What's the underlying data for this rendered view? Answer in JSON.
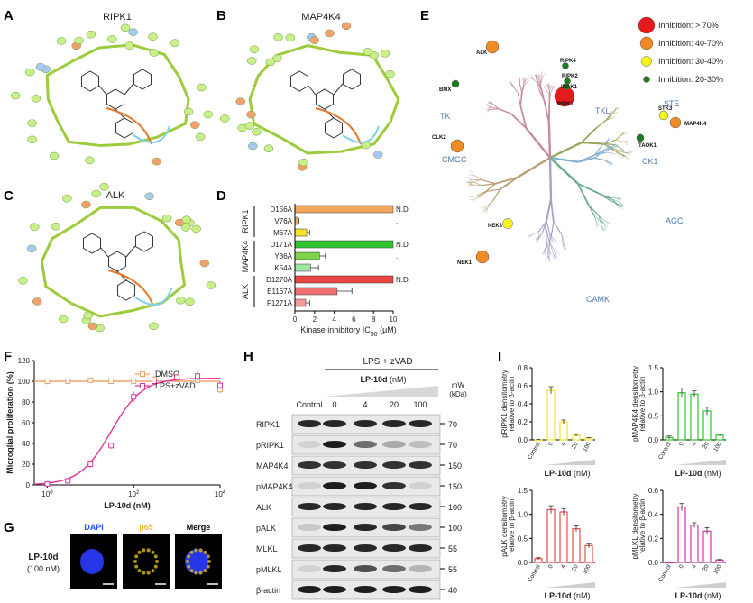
{
  "panels": {
    "A": {
      "letter": "A",
      "title": "RIPK1"
    },
    "B": {
      "letter": "B",
      "title": "MAP4K4"
    },
    "C": {
      "letter": "C",
      "title": "ALK"
    },
    "D": {
      "letter": "D"
    },
    "E": {
      "letter": "E"
    },
    "F": {
      "letter": "F"
    },
    "G": {
      "letter": "G"
    },
    "H": {
      "letter": "H"
    },
    "I": {
      "letter": "I"
    }
  },
  "kinome": {
    "groups": [
      "TK",
      "TKL",
      "STE",
      "CK1",
      "AGC",
      "CAMK",
      "CMGC"
    ],
    "legend": [
      {
        "label": "Inhibition: > 70%",
        "color": "#e41a1c"
      },
      {
        "label": "Inhibition: 40-70%",
        "color": "#f08a24"
      },
      {
        "label": "Inhibition: 30-40%",
        "color": "#f5f51a"
      },
      {
        "label": "Inhibition: 20-30%",
        "color": "#1f7a1f"
      }
    ],
    "hits": [
      {
        "name": "RIPK1",
        "color": "#e41a1c"
      },
      {
        "name": "ALK",
        "color": "#f08a24"
      },
      {
        "name": "CLK2",
        "color": "#f08a24"
      },
      {
        "name": "NEK1",
        "color": "#f08a24"
      },
      {
        "name": "MAP4K4",
        "color": "#f08a24"
      },
      {
        "name": "NEK3",
        "color": "#f5f51a"
      },
      {
        "name": "STK3",
        "color": "#f5f51a"
      },
      {
        "name": "BMX",
        "color": "#1f7a1f"
      },
      {
        "name": "RIPK4",
        "color": "#1f7a1f"
      },
      {
        "name": "RIPK2",
        "color": "#1f7a1f"
      },
      {
        "name": "IRAK1",
        "color": "#1f7a1f"
      },
      {
        "name": "TAOK1",
        "color": "#1f7a1f"
      }
    ]
  },
  "chart_data": [
    {
      "panel": "D",
      "type": "bar",
      "orientation": "horizontal",
      "xlabel_pre": "Kinase inhibitory IC",
      "xlabel_sub": "50",
      "xlabel_post": " (μM)",
      "xlim": [
        0,
        10
      ],
      "xticks": [
        "0",
        "2",
        "4",
        "6",
        "8",
        "10"
      ],
      "groups": [
        {
          "name": "RIPK1",
          "items": [
            {
              "label": "D156A",
              "value": 10,
              "err": 0,
              "color": "#f5a55a",
              "note": "N.D"
            },
            {
              "label": "V76A",
              "value": 0.3,
              "err": 0.1,
              "color": "#f5a55a",
              "note": "."
            },
            {
              "label": "M67A",
              "value": 1.2,
              "err": 0.3,
              "color": "#f5e233",
              "note": ""
            }
          ]
        },
        {
          "name": "MAP4K4",
          "items": [
            {
              "label": "D171A",
              "value": 10,
              "err": 0,
              "color": "#2fc42f",
              "note": "N.D"
            },
            {
              "label": "Y36A",
              "value": 2.5,
              "err": 0.6,
              "color": "#7dd34a",
              "note": "."
            },
            {
              "label": "K54A",
              "value": 1.6,
              "err": 0.8,
              "color": "#9fe59f",
              "note": ""
            }
          ]
        },
        {
          "name": "ALK",
          "items": [
            {
              "label": "D1270A",
              "value": 10,
              "err": 0,
              "color": "#e84545",
              "note": "N.D."
            },
            {
              "label": "E1167A",
              "value": 4.3,
              "err": 1.5,
              "color": "#ee7070",
              "note": ""
            },
            {
              "label": "F1271A",
              "value": 1.1,
              "err": 0.4,
              "color": "#f29a9a",
              "note": ""
            }
          ]
        }
      ]
    },
    {
      "panel": "F",
      "type": "scatter",
      "xlabel": "LP-10d (nM)",
      "ylabel": "Microglial proliferation (%)",
      "xscale": "log",
      "xlim": [
        0.5,
        10000
      ],
      "ylim": [
        0,
        120
      ],
      "yticks": [
        "0",
        "20",
        "40",
        "60",
        "80",
        "100",
        "120"
      ],
      "xticks": [
        {
          "base": "10",
          "exp": "0",
          "v": 1
        },
        {
          "base": "10",
          "exp": "2",
          "v": 100
        },
        {
          "base": "10",
          "exp": "4",
          "v": 10000
        }
      ],
      "series": [
        {
          "name": "DMSO",
          "color": "#f2a36b",
          "x": [
            1,
            3,
            10,
            30,
            100,
            300,
            1000,
            3000,
            10000
          ],
          "y": [
            100,
            100,
            101,
            100,
            100,
            102,
            103,
            101,
            92
          ],
          "err": [
            3,
            2,
            3,
            2,
            2,
            3,
            3,
            4,
            4
          ]
        },
        {
          "name": "LPS+zVAD",
          "color": "#e0339b",
          "x": [
            1,
            3,
            10,
            30,
            100,
            300,
            1000,
            3000,
            10000
          ],
          "y": [
            1,
            4,
            20,
            38,
            85,
            100,
            104,
            105,
            96
          ],
          "err": [
            0,
            1,
            3,
            3,
            5,
            3,
            3,
            5,
            4
          ]
        }
      ]
    },
    {
      "panel": "I",
      "type": "bar",
      "ylabel": "pRIPK1 densitometry relative to β-actin",
      "xlabel": "LP-10d (nM)",
      "color": "#f5e233",
      "ylim": [
        0,
        0.8
      ],
      "yticks": [
        "0.0",
        "0.2",
        "0.4",
        "0.6",
        "0.8"
      ],
      "categories": [
        "Control",
        "0",
        "4",
        "20",
        "100"
      ],
      "values": [
        0.0,
        0.55,
        0.2,
        0.05,
        0.02
      ],
      "err": [
        0.005,
        0.04,
        0.02,
        0.01,
        0.005
      ]
    },
    {
      "panel": "I",
      "type": "bar",
      "ylabel": "pMAP4K4 densitometry relative to β-actin",
      "xlabel": "LP-10d (nM)",
      "color": "#2fc42f",
      "ylim": [
        0,
        1.5
      ],
      "yticks": [
        "0.0",
        "0.5",
        "1.0",
        "1.5"
      ],
      "categories": [
        "Control",
        "0",
        "4",
        "20",
        "100"
      ],
      "values": [
        0.05,
        0.98,
        0.95,
        0.6,
        0.1
      ],
      "err": [
        0.03,
        0.1,
        0.07,
        0.08,
        0.02
      ]
    },
    {
      "panel": "I",
      "type": "bar",
      "ylabel": "pALK densitometry relative to β-actin",
      "xlabel": "LP-10d (nM)",
      "color": "#ee4a4a",
      "ylim": [
        0,
        1.5
      ],
      "yticks": [
        "0.0",
        "0.5",
        "1.0",
        "1.5"
      ],
      "categories": [
        "Control",
        "0",
        "4",
        "20",
        "100"
      ],
      "values": [
        0.08,
        1.1,
        1.05,
        0.7,
        0.35
      ],
      "err": [
        0.02,
        0.08,
        0.07,
        0.06,
        0.05
      ]
    },
    {
      "panel": "I",
      "type": "bar",
      "ylabel": "pMLKL densitometry relative to β-actin",
      "xlabel": "LP-10d (nM)",
      "color": "#dd33aa",
      "ylim": [
        0,
        0.6
      ],
      "yticks": [
        "0.0",
        "0.2",
        "0.4",
        "0.6"
      ],
      "categories": [
        "Control",
        "0",
        "4",
        "20",
        "100"
      ],
      "values": [
        0.0,
        0.46,
        0.31,
        0.26,
        0.02
      ],
      "err": [
        0.002,
        0.03,
        0.02,
        0.03,
        0.005
      ]
    }
  ],
  "western": {
    "treatment": "LPS + zVAD",
    "dose_label": "LP-10d",
    "dose_unit": "(nM)",
    "lanes": [
      "Control",
      "0",
      "4",
      "20",
      "100"
    ],
    "mw_title": "mW",
    "mw_unit": "(kDa)",
    "rows": [
      {
        "label": "RIPK1",
        "mw": "70",
        "bands": [
          0.9,
          0.9,
          0.9,
          0.9,
          0.9
        ]
      },
      {
        "label": "pRIPK1",
        "mw": "70",
        "bands": [
          0.05,
          0.95,
          0.55,
          0.25,
          0.15
        ]
      },
      {
        "label": "MAP4K4",
        "mw": "150",
        "bands": [
          0.85,
          0.85,
          0.85,
          0.85,
          0.85
        ]
      },
      {
        "label": "pMAP4K4",
        "mw": "150",
        "bands": [
          0.05,
          0.95,
          0.95,
          0.85,
          0.05
        ]
      },
      {
        "label": "ALK",
        "mw": "100",
        "bands": [
          0.9,
          0.9,
          0.9,
          0.9,
          0.9
        ]
      },
      {
        "label": "pALK",
        "mw": "100",
        "bands": [
          0.1,
          0.95,
          0.9,
          0.75,
          0.5
        ]
      },
      {
        "label": "MLKL",
        "mw": "55",
        "bands": [
          0.9,
          0.9,
          0.9,
          0.9,
          0.9
        ]
      },
      {
        "label": "pMLKL",
        "mw": "55",
        "bands": [
          0.05,
          0.9,
          0.7,
          0.55,
          0.2
        ]
      },
      {
        "label": "β-actin",
        "mw": "40",
        "bands": [
          0.95,
          0.95,
          0.95,
          0.95,
          0.95
        ]
      }
    ]
  },
  "microscopy": {
    "channels": [
      {
        "label": "DAPI",
        "color": "#2050ff"
      },
      {
        "label": "p65",
        "color": "#e8c020"
      },
      {
        "label": "Merge",
        "color": "#000000"
      }
    ],
    "row_label": "LP-10d",
    "row_sub": "(100 nM)"
  }
}
